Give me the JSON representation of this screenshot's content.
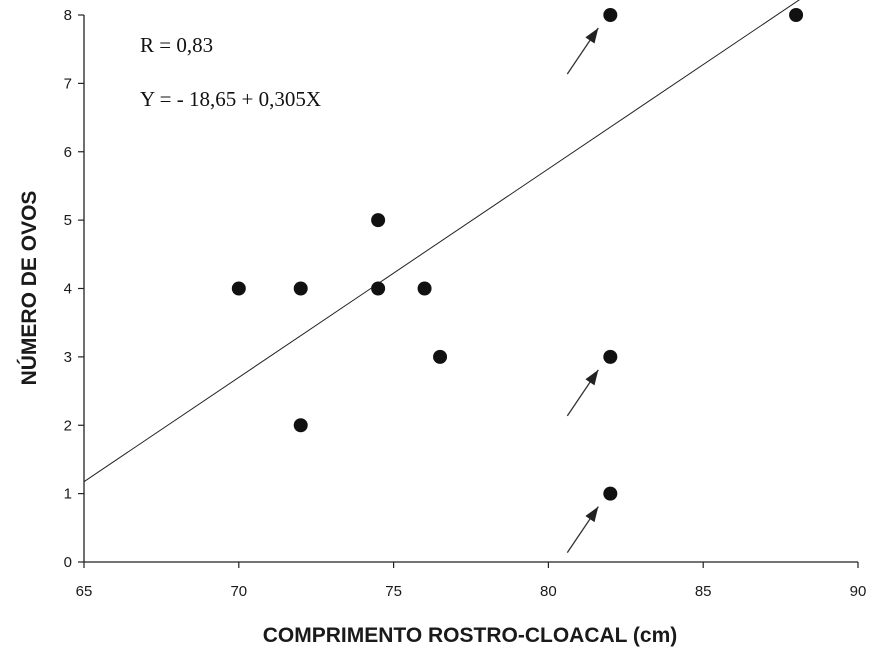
{
  "chart_data": {
    "type": "scatter",
    "title": "",
    "xlabel": "COMPRIMENTO ROSTRO-CLOACAL (cm)",
    "ylabel": "NÚMERO DE OVOS",
    "xlim": [
      65,
      90
    ],
    "ylim": [
      0,
      8
    ],
    "xticks": [
      "65",
      "70",
      "75",
      "80",
      "85",
      "90"
    ],
    "yticks": [
      "0",
      "1",
      "2",
      "3",
      "4",
      "5",
      "6",
      "7",
      "8"
    ],
    "grid": false,
    "points": [
      {
        "x": 70,
        "y": 4
      },
      {
        "x": 72,
        "y": 4
      },
      {
        "x": 72,
        "y": 2
      },
      {
        "x": 74.5,
        "y": 5
      },
      {
        "x": 74.5,
        "y": 4
      },
      {
        "x": 76,
        "y": 4
      },
      {
        "x": 76.5,
        "y": 3
      },
      {
        "x": 82,
        "y": 8
      },
      {
        "x": 82,
        "y": 3
      },
      {
        "x": 82,
        "y": 1
      },
      {
        "x": 88,
        "y": 8
      }
    ],
    "arrows_point_to": [
      {
        "x": 82,
        "y": 8
      },
      {
        "x": 82,
        "y": 3
      },
      {
        "x": 82,
        "y": 1
      }
    ],
    "regression": {
      "intercept": -18.65,
      "slope": 0.305,
      "x_range": [
        65,
        89.2
      ]
    },
    "annotations": [
      "R = 0,83",
      "Y = - 18,65 + 0,305X"
    ],
    "colors": {
      "points": "#111111",
      "line": "#222222",
      "axis": "#222222"
    }
  }
}
